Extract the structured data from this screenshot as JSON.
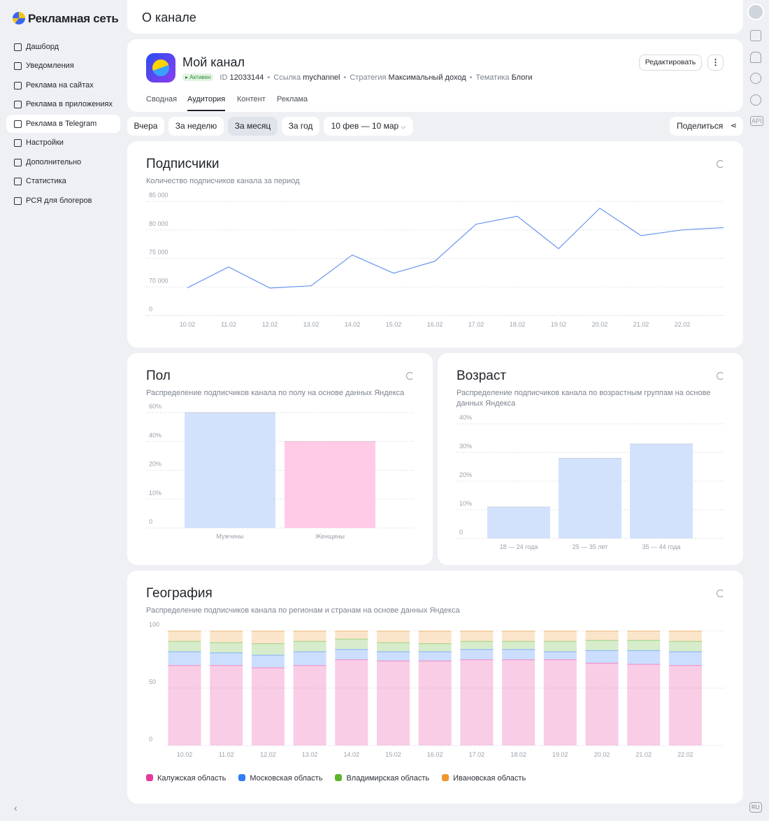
{
  "sidebar": {
    "logo": "Рекламная сеть",
    "items": [
      "Дашборд",
      "Уведомления",
      "Реклама на сайтах",
      "Реклама в приложениях",
      "Реклама в Telegram",
      "Настройки",
      "Дополнительно",
      "Статистика",
      "РСЯ для блогеров"
    ],
    "active_item": 4
  },
  "header": {
    "title": "О канале"
  },
  "channel": {
    "name": "Мой канал",
    "status": "Активен",
    "id_label": "ID",
    "id": "12033144",
    "link_label": "Ссылка",
    "link": "mychannel",
    "strategy_label": "Стратегия",
    "strategy": "Максимальный доход",
    "topic_label": "Тематика",
    "topic": "Блоги",
    "edit_button": "Редактировать",
    "tabs": [
      "Сводная",
      "Аудитория",
      "Контент",
      "Реклама"
    ],
    "active_tab": 1
  },
  "filters": {
    "periods": [
      "Вчера",
      "За неделю",
      "За месяц",
      "За год"
    ],
    "active_period": 2,
    "date_range": "10 фев — 10 мар",
    "share": "Поделиться"
  },
  "right_rail": {
    "api": "API",
    "lang": "RU"
  },
  "chart_data": [
    {
      "type": "line",
      "title": "Подписчики",
      "subtitle": "Количество подписчиков канала за период",
      "categories": [
        "10.02",
        "11.02",
        "12.02",
        "13.02",
        "14.02",
        "15.02",
        "16.02",
        "17.02",
        "18.02",
        "19.02",
        "20.02",
        "21.02",
        "22.02",
        null
      ],
      "values": [
        67600,
        73500,
        67100,
        70200,
        75600,
        72400,
        74500,
        81000,
        82400,
        76700,
        83800,
        79000,
        80000,
        80400
      ],
      "color": "#5b8def",
      "ylim": [
        0,
        85000
      ],
      "yticks": [
        0,
        {
          "value": 70000,
          "label": "70 000"
        },
        {
          "value": 75000,
          "label": "75 000"
        },
        {
          "value": 80000,
          "label": "80 000"
        },
        {
          "value": 85000,
          "label": "85 000"
        }
      ],
      "grid": true
    },
    {
      "type": "bar",
      "title": "Пол",
      "subtitle": "Распределение подписчиков канала по полу на основе данных Яндекса",
      "categories": [
        "Мужчины",
        "Женщины"
      ],
      "values": [
        60,
        40
      ],
      "colors": [
        "#d3e2fc",
        "#ffcbe6"
      ],
      "ylim": [
        0,
        60
      ],
      "yticks": [
        0,
        {
          "value": 10,
          "label": "10%"
        },
        {
          "value": 20,
          "label": "20%"
        },
        {
          "value": 40,
          "label": "40%"
        },
        {
          "value": 60,
          "label": "60%"
        }
      ],
      "grid": true
    },
    {
      "type": "bar",
      "title": "Возраст",
      "subtitle": "Распределение подписчиков канала по возрастным группам на основе данных Яндекса",
      "categories": [
        "18 — 24 года",
        "25 — 35 лет",
        "35 — 44 года"
      ],
      "values": [
        11,
        28,
        33
      ],
      "color": "#d3e2fc",
      "ylim": [
        0,
        40
      ],
      "yticks": [
        0,
        {
          "value": 10,
          "label": "10%"
        },
        {
          "value": 20,
          "label": "20%"
        },
        {
          "value": 30,
          "label": "30%"
        },
        {
          "value": 40,
          "label": "40%"
        }
      ],
      "grid": true
    },
    {
      "type": "stacked_bar",
      "title": "География",
      "subtitle": "Распределение подписчиков канала по регионам и странам на основе данных Яндекса",
      "categories": [
        "10.02",
        "11.02",
        "12.02",
        "13.02",
        "14.02",
        "15.02",
        "16.02",
        "17.02",
        "18.02",
        "19.02",
        "20.02",
        "21.02",
        "22.02"
      ],
      "series": [
        {
          "name": "Калужская область",
          "color": "#e6399b",
          "values": [
            70,
            70,
            68,
            70,
            75,
            74,
            74,
            75,
            75,
            75,
            72,
            71,
            70
          ]
        },
        {
          "name": "Московская область",
          "color": "#2f7df6",
          "values": [
            12,
            11,
            11,
            12,
            9,
            8,
            8,
            9,
            9,
            7,
            11,
            12,
            12
          ]
        },
        {
          "name": "Владимирская область",
          "color": "#5ab52a",
          "values": [
            9,
            9,
            10,
            9,
            9,
            8,
            7,
            7,
            7,
            9,
            9,
            9,
            9
          ]
        },
        {
          "name": "Ивановская область",
          "color": "#f0962c",
          "values": [
            9,
            10,
            11,
            9,
            7,
            10,
            11,
            9,
            9,
            9,
            8,
            8,
            9
          ]
        }
      ],
      "ylim": [
        0,
        100
      ],
      "yticks": [
        0,
        50,
        100
      ],
      "grid": true,
      "legend": "bottom-left"
    }
  ]
}
